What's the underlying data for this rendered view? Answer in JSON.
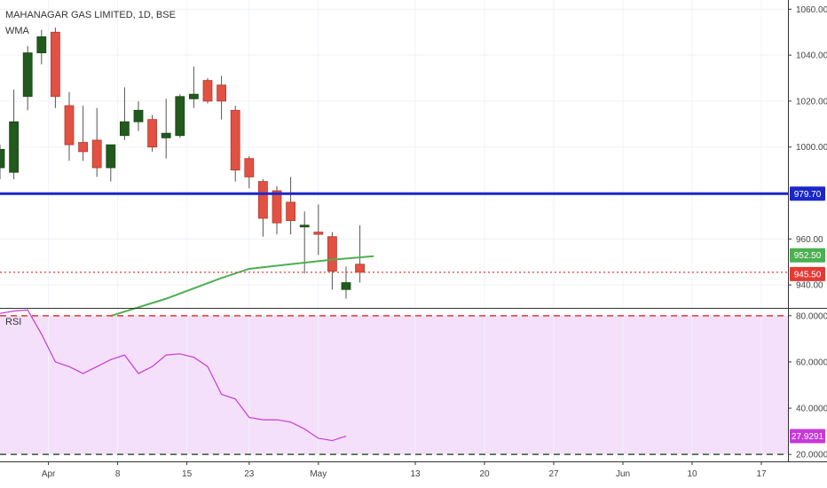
{
  "header": {
    "title": "MAHANAGAR GAS LIMITED, 1D, BSE",
    "indicator": "WMA"
  },
  "rsi_panel": {
    "label": "RSI"
  },
  "chart_data": [
    {
      "type": "candlestick",
      "title": "MAHANAGAR GAS LIMITED, 1D, BSE",
      "y_ticks": [
        "1060.00",
        "1040.00",
        "1020.00",
        "1000.00",
        "960.00",
        "940.00"
      ],
      "ylim": [
        930,
        1064
      ],
      "x_ticks": [
        {
          "label": "Apr",
          "index": 3.5
        },
        {
          "label": "8",
          "index": 8.5
        },
        {
          "label": "15",
          "index": 13.5
        },
        {
          "label": "23",
          "index": 18
        },
        {
          "label": "May",
          "index": 23
        },
        {
          "label": "13",
          "index": 30
        },
        {
          "label": "20",
          "index": 35
        },
        {
          "label": "27",
          "index": 40
        },
        {
          "label": "Jun",
          "index": 45
        },
        {
          "label": "10",
          "index": 50
        },
        {
          "label": "17",
          "index": 55
        }
      ],
      "candles": [
        {
          "o": 991,
          "h": 1001,
          "l": 986,
          "c": 999
        },
        {
          "o": 989,
          "h": 1025,
          "l": 986,
          "c": 1011
        },
        {
          "o": 1022,
          "h": 1044,
          "l": 1016,
          "c": 1041
        },
        {
          "o": 1041,
          "h": 1051,
          "l": 1036,
          "c": 1048
        },
        {
          "o": 1050,
          "h": 1052,
          "l": 1017,
          "c": 1022
        },
        {
          "o": 1018,
          "h": 1024,
          "l": 994,
          "c": 1001
        },
        {
          "o": 1002,
          "h": 1018,
          "l": 994,
          "c": 998
        },
        {
          "o": 1003,
          "h": 1017,
          "l": 987,
          "c": 991
        },
        {
          "o": 991,
          "h": 1000,
          "l": 985,
          "c": 1001
        },
        {
          "o": 1005,
          "h": 1026,
          "l": 1003,
          "c": 1011
        },
        {
          "o": 1011,
          "h": 1020,
          "l": 1007,
          "c": 1016
        },
        {
          "o": 1012,
          "h": 1014,
          "l": 998,
          "c": 1000
        },
        {
          "o": 1004,
          "h": 1021,
          "l": 995,
          "c": 1006
        },
        {
          "o": 1005,
          "h": 1023,
          "l": 1004,
          "c": 1022
        },
        {
          "o": 1021,
          "h": 1035,
          "l": 1017,
          "c": 1023
        },
        {
          "o": 1029,
          "h": 1030,
          "l": 1019,
          "c": 1020
        },
        {
          "o": 1027,
          "h": 1031,
          "l": 1012,
          "c": 1020
        },
        {
          "o": 1016,
          "h": 1018,
          "l": 985,
          "c": 990
        },
        {
          "o": 995,
          "h": 996,
          "l": 982,
          "c": 987
        },
        {
          "o": 985,
          "h": 986,
          "l": 961,
          "c": 969
        },
        {
          "o": 981,
          "h": 983,
          "l": 962,
          "c": 967
        },
        {
          "o": 976,
          "h": 987,
          "l": 962,
          "c": 968
        },
        {
          "o": 966,
          "h": 972,
          "l": 945,
          "c": 966
        },
        {
          "o": 963,
          "h": 975,
          "l": 953,
          "c": 962
        },
        {
          "o": 961,
          "h": 963,
          "l": 938,
          "c": 946
        },
        {
          "o": 938,
          "h": 948,
          "l": 934,
          "c": 941
        },
        {
          "o": 949,
          "h": 966,
          "l": 941,
          "c": 945.5
        }
      ],
      "wma": [
        {
          "index": 8,
          "value": 926.5
        },
        {
          "index": 12,
          "value": 934
        },
        {
          "index": 16,
          "value": 943
        },
        {
          "index": 18,
          "value": 947
        },
        {
          "index": 21,
          "value": 949
        },
        {
          "index": 24,
          "value": 951
        },
        {
          "index": 27,
          "value": 952.5
        }
      ],
      "hlines": [
        {
          "value": 979.7,
          "label": "979.70",
          "color": "#1a27c9",
          "style": "solid"
        },
        {
          "value": 945.5,
          "label": "945.50",
          "color": "#e53935",
          "style": "dotted"
        }
      ],
      "price_labels": [
        {
          "value": 952.5,
          "label": "952.50",
          "color": "#4caf50"
        },
        {
          "value": 945.5,
          "label": "945.50",
          "color": "#e53935"
        },
        {
          "value": 979.7,
          "label": "979.70",
          "color": "#1a27c9"
        }
      ],
      "colors": {
        "up": "#215a1c",
        "down": "#e25142",
        "wma": "#4caf50"
      }
    },
    {
      "type": "line",
      "title": "RSI",
      "y_ticks": [
        "80.0000",
        "60.0000",
        "40.0000",
        "20.0000"
      ],
      "ylim": [
        17,
        83
      ],
      "band": [
        20,
        80
      ],
      "band_color": "#f4e0fb",
      "line_color": "#c739d8",
      "levels": [
        {
          "value": 80,
          "color": "#e53935"
        },
        {
          "value": 20,
          "color": "#2e5e2e"
        }
      ],
      "series": [
        {
          "values": [
            81,
            82,
            82.5,
            72,
            60,
            58,
            55,
            58,
            61,
            63,
            55,
            58,
            63,
            63.5,
            62,
            58,
            46,
            44,
            36,
            35,
            35,
            34,
            31,
            27,
            26,
            27.9291
          ]
        }
      ],
      "last_label": {
        "value": 27.9291,
        "label": "27.9291",
        "color": "#c739d8"
      }
    }
  ]
}
